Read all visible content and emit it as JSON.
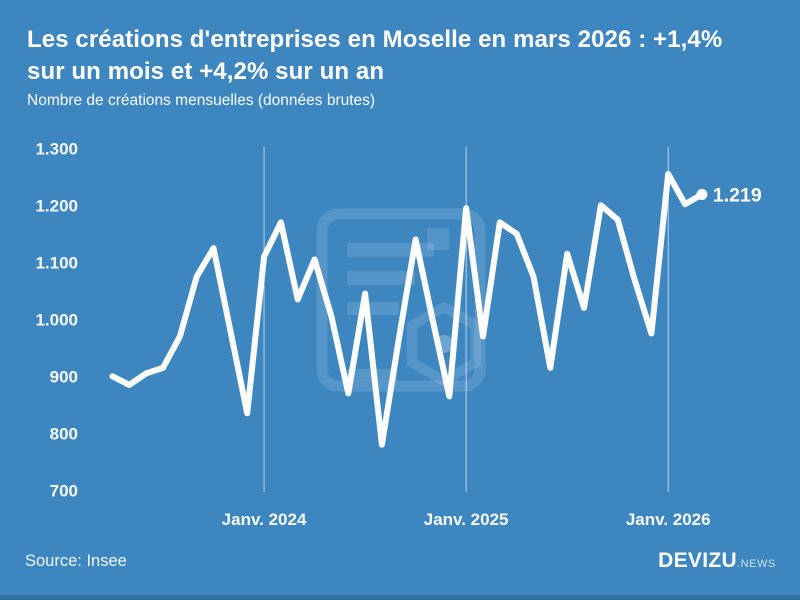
{
  "header": {
    "title_lines": [
      "Les créations d'entreprises en Moselle en mars 2026 : +1,4%",
      "sur un mois et +4,2% sur un an"
    ],
    "subtitle": "Nombre de créations mensuelles (données brutes)"
  },
  "chart_data": {
    "type": "line",
    "title": "Les créations d'entreprises en Moselle en mars 2026 : +1,4% sur un mois et +4,2% sur un an",
    "subtitle": "Nombre de créations mensuelles (données brutes)",
    "x": [
      "2023-04",
      "2023-05",
      "2023-06",
      "2023-07",
      "2023-08",
      "2023-09",
      "2023-10",
      "2023-11",
      "2023-12",
      "2024-01",
      "2024-02",
      "2024-03",
      "2024-04",
      "2024-05",
      "2024-06",
      "2024-07",
      "2024-08",
      "2024-09",
      "2024-10",
      "2024-11",
      "2024-12",
      "2025-01",
      "2025-02",
      "2025-03",
      "2025-04",
      "2025-05",
      "2025-06",
      "2025-07",
      "2025-08",
      "2025-09",
      "2025-10",
      "2025-11",
      "2025-12",
      "2026-01",
      "2026-02",
      "2026-03"
    ],
    "values": [
      900,
      885,
      905,
      915,
      970,
      1075,
      1125,
      980,
      835,
      1110,
      1170,
      1035,
      1105,
      1005,
      870,
      1045,
      780,
      965,
      1140,
      1000,
      865,
      1195,
      970,
      1170,
      1150,
      1075,
      915,
      1115,
      1020,
      1200,
      1175,
      1070,
      975,
      1255,
      1202,
      1219
    ],
    "last_point_label": "1.219",
    "x_ticks": [
      {
        "index": 9,
        "label": "Janv. 2024"
      },
      {
        "index": 21,
        "label": "Janv. 2025"
      },
      {
        "index": 33,
        "label": "Janv. 2026"
      }
    ],
    "y_ticks": [
      {
        "value": 1300,
        "label": "1.300"
      },
      {
        "value": 1200,
        "label": "1.200"
      },
      {
        "value": 1100,
        "label": "1.100"
      },
      {
        "value": 1000,
        "label": "1.000"
      },
      {
        "value": 900,
        "label": "900"
      },
      {
        "value": 800,
        "label": "800"
      },
      {
        "value": 700,
        "label": "700"
      }
    ],
    "ylim": [
      700,
      1300
    ],
    "grid": "vertical-only",
    "legend": "none",
    "line_color": "#fcfcfa",
    "background_color": "#3d86c0",
    "gridline_color": "rgba(255,255,255,0.65)"
  },
  "footer": {
    "source": "Source: Insee",
    "brand": "DEVIZU",
    "brand_suffix": ".NEWS"
  }
}
